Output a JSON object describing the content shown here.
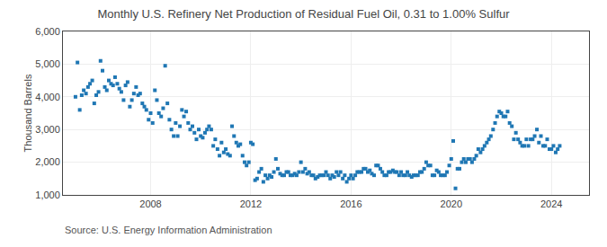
{
  "chart_data": {
    "type": "scatter",
    "title": "Monthly U.S. Refinery Net Production of Residual Fuel Oil, 0.31 to 1.00% Sulfur",
    "ylabel": "Thousand Barrels",
    "annotations": [
      "Source: U.S. Energy Information Administration"
    ],
    "marker": "square",
    "grid": true,
    "xlim": [
      2004.5,
      2025.5
    ],
    "xticks": [
      2008,
      2012,
      2016,
      2020,
      2024
    ],
    "ylim": [
      1000,
      6000
    ],
    "yticks": [
      {
        "value": 1000,
        "label": "1,000"
      },
      {
        "value": 2000,
        "label": "2,000"
      },
      {
        "value": 3000,
        "label": "3,000"
      },
      {
        "value": 4000,
        "label": "4,000"
      },
      {
        "value": 5000,
        "label": "5,000"
      },
      {
        "value": 6000,
        "label": "6,000"
      }
    ],
    "x": [
      2005.0,
      2005.08,
      2005.17,
      2005.25,
      2005.33,
      2005.42,
      2005.5,
      2005.58,
      2005.67,
      2005.75,
      2005.83,
      2005.92,
      2006.0,
      2006.08,
      2006.17,
      2006.25,
      2006.33,
      2006.42,
      2006.5,
      2006.58,
      2006.67,
      2006.75,
      2006.83,
      2006.92,
      2007.0,
      2007.08,
      2007.17,
      2007.25,
      2007.33,
      2007.42,
      2007.5,
      2007.58,
      2007.67,
      2007.75,
      2007.83,
      2007.92,
      2008.0,
      2008.08,
      2008.17,
      2008.25,
      2008.33,
      2008.42,
      2008.5,
      2008.58,
      2008.67,
      2008.75,
      2008.83,
      2008.92,
      2009.0,
      2009.08,
      2009.17,
      2009.25,
      2009.33,
      2009.42,
      2009.5,
      2009.58,
      2009.67,
      2009.75,
      2009.83,
      2009.92,
      2010.0,
      2010.08,
      2010.17,
      2010.25,
      2010.33,
      2010.42,
      2010.5,
      2010.58,
      2010.67,
      2010.75,
      2010.83,
      2010.92,
      2011.0,
      2011.08,
      2011.17,
      2011.25,
      2011.33,
      2011.42,
      2011.5,
      2011.58,
      2011.67,
      2011.75,
      2011.83,
      2011.92,
      2012.0,
      2012.08,
      2012.17,
      2012.25,
      2012.33,
      2012.42,
      2012.5,
      2012.58,
      2012.67,
      2012.75,
      2012.83,
      2012.92,
      2013.0,
      2013.08,
      2013.17,
      2013.25,
      2013.33,
      2013.42,
      2013.5,
      2013.58,
      2013.67,
      2013.75,
      2013.83,
      2013.92,
      2014.0,
      2014.08,
      2014.17,
      2014.25,
      2014.33,
      2014.42,
      2014.5,
      2014.58,
      2014.67,
      2014.75,
      2014.83,
      2014.92,
      2015.0,
      2015.08,
      2015.17,
      2015.25,
      2015.33,
      2015.42,
      2015.5,
      2015.58,
      2015.67,
      2015.75,
      2015.83,
      2015.92,
      2016.0,
      2016.08,
      2016.17,
      2016.25,
      2016.33,
      2016.42,
      2016.5,
      2016.58,
      2016.67,
      2016.75,
      2016.83,
      2016.92,
      2017.0,
      2017.08,
      2017.17,
      2017.25,
      2017.33,
      2017.42,
      2017.5,
      2017.58,
      2017.67,
      2017.75,
      2017.83,
      2017.92,
      2018.0,
      2018.08,
      2018.17,
      2018.25,
      2018.33,
      2018.42,
      2018.5,
      2018.58,
      2018.67,
      2018.75,
      2018.83,
      2018.92,
      2019.0,
      2019.08,
      2019.17,
      2019.25,
      2019.33,
      2019.42,
      2019.5,
      2019.58,
      2019.67,
      2019.75,
      2019.83,
      2019.92,
      2020.0,
      2020.08,
      2020.17,
      2020.25,
      2020.33,
      2020.42,
      2020.5,
      2020.58,
      2020.67,
      2020.75,
      2020.83,
      2020.92,
      2021.0,
      2021.08,
      2021.17,
      2021.25,
      2021.33,
      2021.42,
      2021.5,
      2021.58,
      2021.67,
      2021.75,
      2021.83,
      2021.92,
      2022.0,
      2022.08,
      2022.17,
      2022.25,
      2022.33,
      2022.42,
      2022.5,
      2022.58,
      2022.67,
      2022.75,
      2022.83,
      2022.92,
      2023.0,
      2023.08,
      2023.17,
      2023.25,
      2023.33,
      2023.42,
      2023.5,
      2023.58,
      2023.67,
      2023.75,
      2023.83,
      2023.92,
      2024.0,
      2024.08,
      2024.17,
      2024.25,
      2024.33
    ],
    "values": [
      4000,
      5050,
      3600,
      4050,
      4200,
      4100,
      4300,
      4400,
      4500,
      3800,
      4050,
      4150,
      5100,
      4800,
      4300,
      4200,
      4500,
      4400,
      4350,
      4600,
      4400,
      4250,
      4150,
      3900,
      4350,
      4450,
      3700,
      3900,
      4100,
      4300,
      4050,
      4100,
      3800,
      3700,
      3600,
      3300,
      3500,
      3200,
      4200,
      3900,
      3500,
      3400,
      3650,
      4950,
      3800,
      3300,
      3000,
      2800,
      3200,
      2800,
      3100,
      3600,
      3400,
      3550,
      3200,
      3000,
      3100,
      2900,
      2700,
      3000,
      2800,
      2750,
      2900,
      3000,
      3100,
      3000,
      2500,
      2700,
      2400,
      2200,
      2600,
      2300,
      2400,
      2250,
      2200,
      3100,
      2800,
      2600,
      2500,
      2550,
      2200,
      2000,
      1900,
      2000,
      2600,
      2550,
      1450,
      1500,
      1700,
      1800,
      1400,
      1600,
      1500,
      1600,
      1550,
      1700,
      2100,
      1800,
      1650,
      1600,
      1600,
      1700,
      1700,
      1600,
      1600,
      1650,
      1600,
      1700,
      2000,
      1700,
      1800,
      1650,
      1700,
      1600,
      1600,
      1500,
      1550,
      1600,
      1600,
      1600,
      1700,
      1600,
      1500,
      1600,
      1550,
      1700,
      1600,
      1700,
      1500,
      1600,
      1400,
      1500,
      1600,
      1500,
      1600,
      1700,
      1700,
      1700,
      1800,
      1800,
      1700,
      1750,
      1650,
      1600,
      1900,
      1900,
      1800,
      1700,
      1600,
      1600,
      1700,
      1700,
      1750,
      1700,
      1700,
      1600,
      1700,
      1600,
      1600,
      1700,
      1600,
      1550,
      1600,
      1600,
      1600,
      1700,
      1700,
      1800,
      2000,
      1900,
      1900,
      1600,
      1600,
      1750,
      1700,
      1600,
      1600,
      1600,
      1700,
      1900,
      2100,
      2650,
      1200,
      1800,
      1800,
      2000,
      2100,
      2000,
      2100,
      2100,
      2000,
      2100,
      2200,
      2400,
      2300,
      2400,
      2500,
      2600,
      2700,
      2800,
      3000,
      3200,
      3400,
      3550,
      3500,
      3400,
      3400,
      3550,
      3200,
      3100,
      2700,
      2900,
      2700,
      2600,
      2500,
      2500,
      2700,
      2500,
      2700,
      2700,
      2800,
      3000,
      2600,
      2800,
      2500,
      2500,
      2700,
      2400,
      2400,
      2500,
      2300,
      2400,
      2500
    ]
  }
}
